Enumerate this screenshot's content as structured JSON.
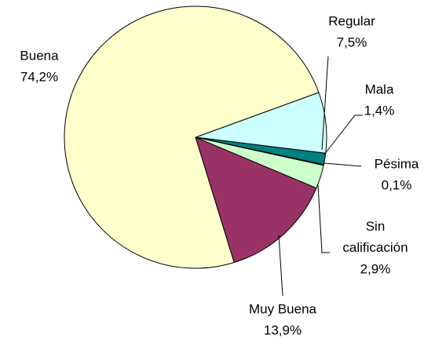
{
  "chart_data": {
    "type": "pie",
    "categories": [
      "Regular",
      "Mala",
      "Pésima",
      "Sin calificación",
      "Muy Buena",
      "Buena"
    ],
    "values": [
      7.5,
      1.4,
      0.1,
      2.9,
      13.9,
      74.2
    ],
    "value_labels": [
      "7,5%",
      "1,4%",
      "0,1%",
      "2,9%",
      "13,9%",
      "74,2%"
    ],
    "colors": [
      "#ccffff",
      "#008080",
      "#0066cc",
      "#ccffcc",
      "#993366",
      "#ffffcc"
    ]
  }
}
